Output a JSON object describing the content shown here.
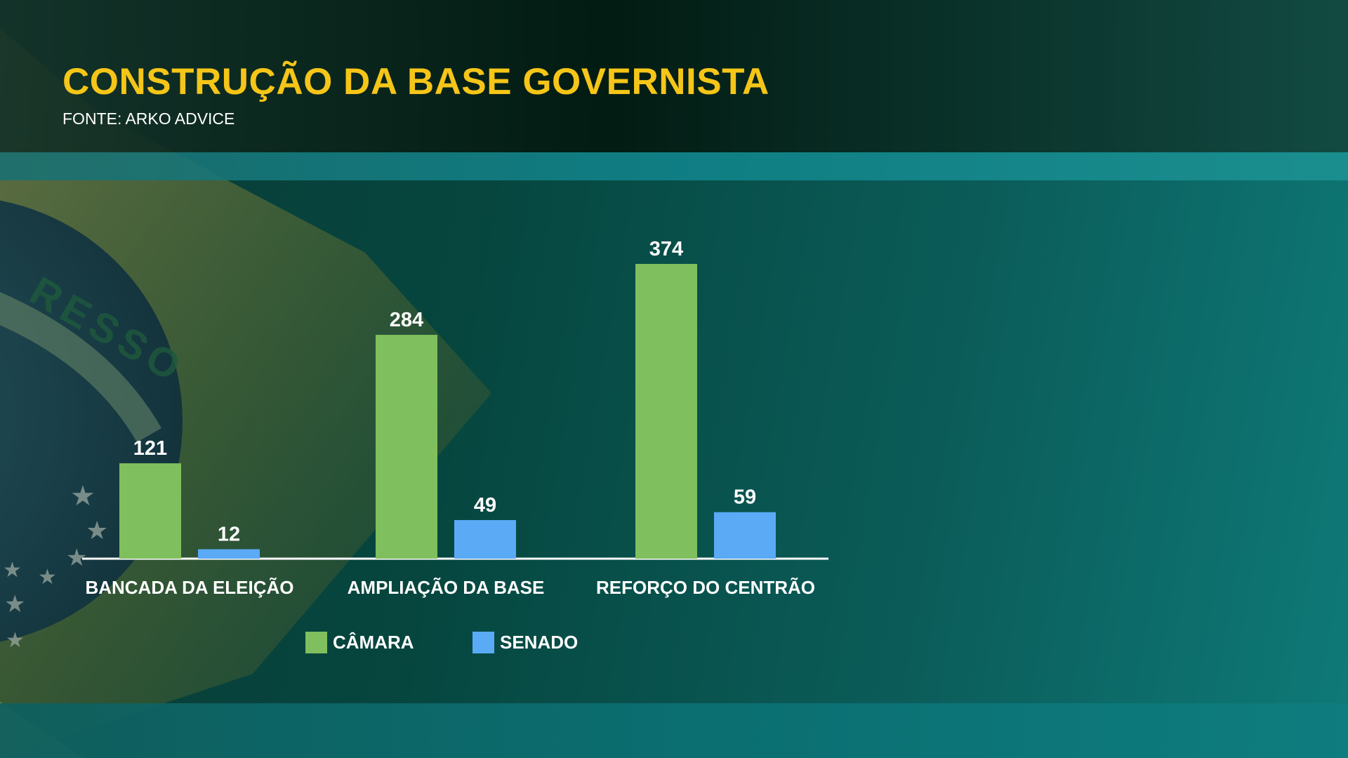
{
  "header": {
    "title": "CONSTRUÇÃO DA BASE GOVERNISTA",
    "source": "FONTE: ARKO ADVICE"
  },
  "background": {
    "flag_text": "RESSO"
  },
  "colors": {
    "title": "#f5c518",
    "camara": "#7fbf5e",
    "senado": "#5aaaf5",
    "text": "#ffffff"
  },
  "chart_data": {
    "type": "bar",
    "title": "CONSTRUÇÃO DA BASE GOVERNISTA",
    "xlabel": "",
    "ylabel": "",
    "categories": [
      "BANCADA DA ELEIÇÃO",
      "AMPLIAÇÃO DA BASE",
      "REFORÇO DO CENTRÃO"
    ],
    "series": [
      {
        "name": "CÂMARA",
        "values": [
          121,
          284,
          374
        ],
        "color": "#7fbf5e"
      },
      {
        "name": "SENADO",
        "values": [
          12,
          49,
          59
        ],
        "color": "#5aaaf5"
      }
    ],
    "ylim": [
      0,
      374
    ],
    "grid": false,
    "legend_position": "bottom-center",
    "data_labels": true
  }
}
